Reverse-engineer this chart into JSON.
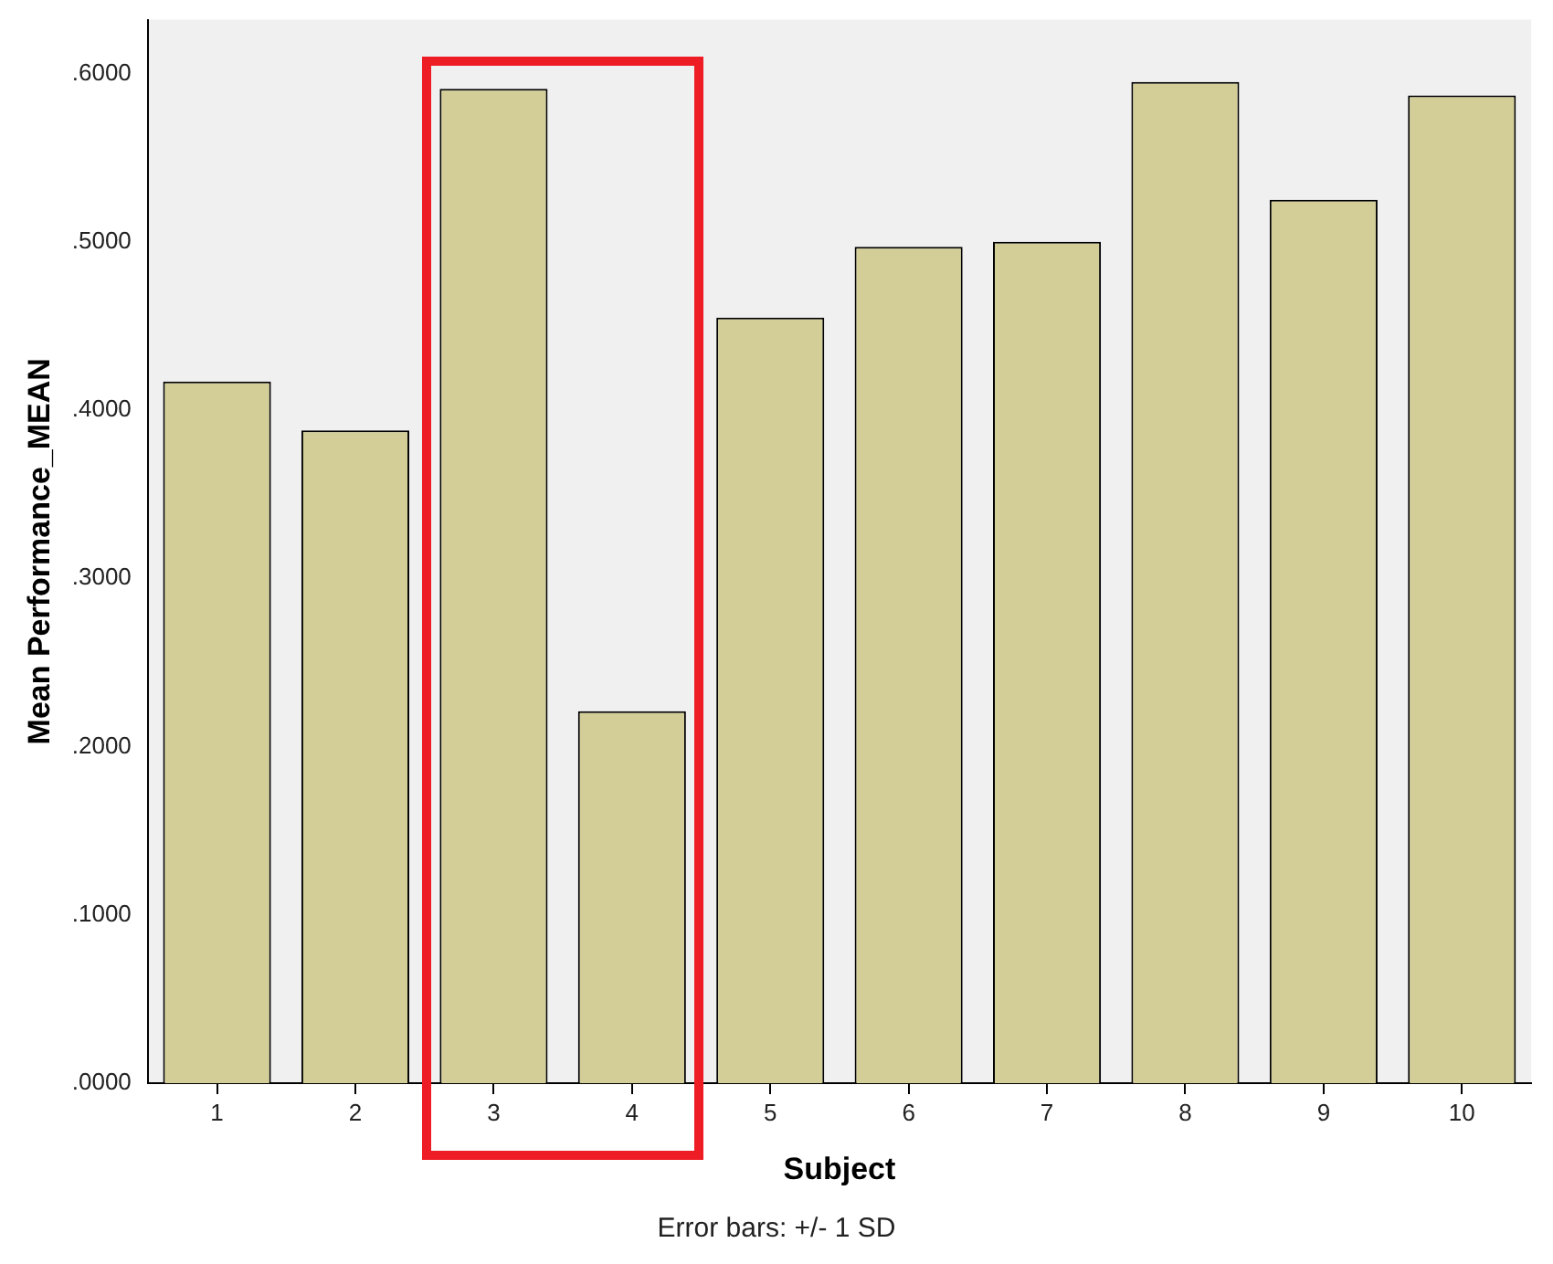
{
  "chart_data": {
    "type": "bar",
    "xlabel": "Subject",
    "ylabel": "Mean Performance_MEAN",
    "categories": [
      "1",
      "2",
      "3",
      "4",
      "5",
      "6",
      "7",
      "8",
      "9",
      "10"
    ],
    "values": [
      0.417,
      0.388,
      0.591,
      0.221,
      0.455,
      0.497,
      0.5,
      0.595,
      0.525,
      0.587
    ],
    "color": "#d3ce97",
    "ylim": [
      0,
      0.632
    ],
    "yticks": [
      {
        "value": 0,
        "label": ".0000"
      },
      {
        "value": 0.1,
        "label": ".1000"
      },
      {
        "value": 0.2,
        "label": ".2000"
      },
      {
        "value": 0.3,
        "label": ".3000"
      },
      {
        "value": 0.4,
        "label": ".4000"
      },
      {
        "value": 0.5,
        "label": ".5000"
      },
      {
        "value": 0.6,
        "label": ".6000"
      }
    ],
    "grid": false,
    "legend": false,
    "annotations": [
      "Error bars: +/- 1 SD"
    ]
  }
}
